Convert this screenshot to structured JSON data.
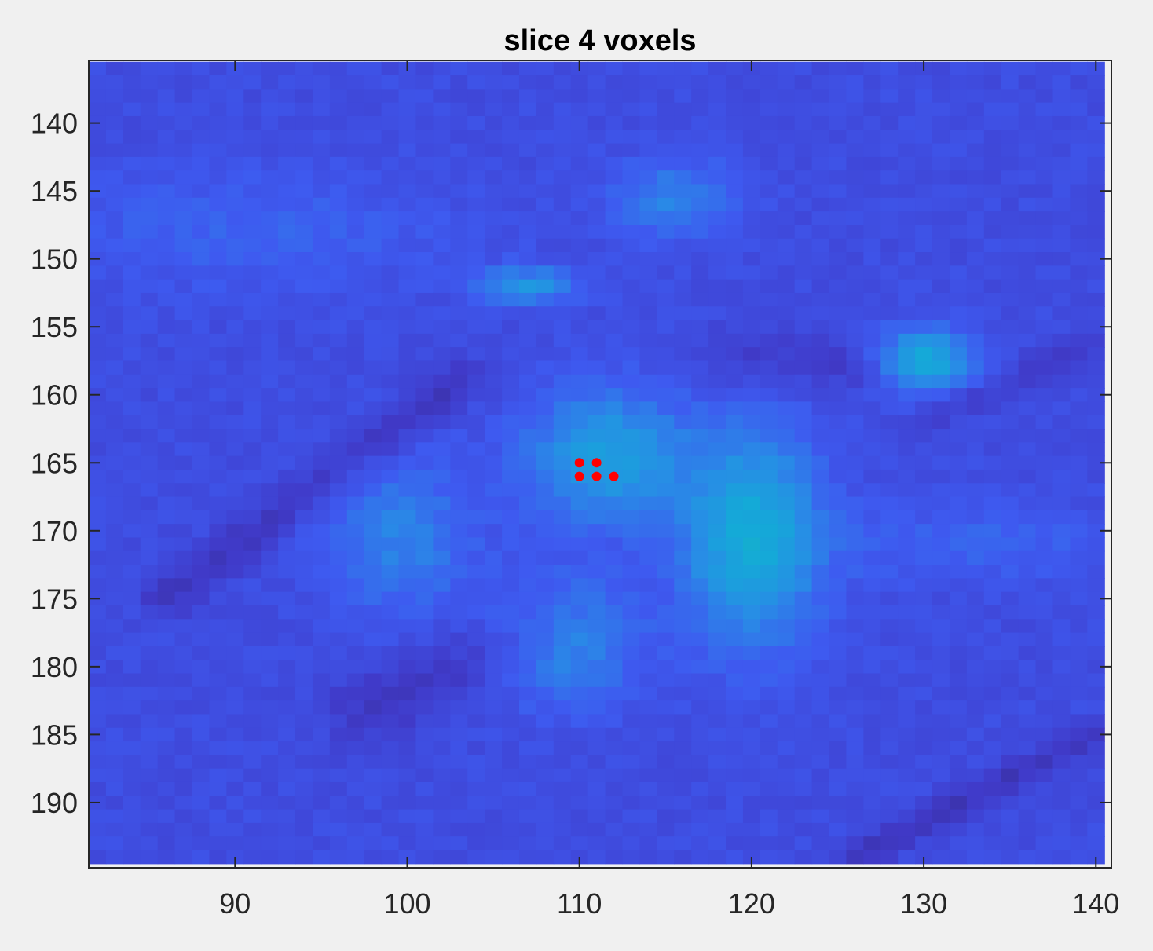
{
  "chart_data": {
    "type": "heatmap",
    "title": "slice 4 voxels",
    "xlabel": "",
    "ylabel": "",
    "xlim": [
      81.5,
      140.9
    ],
    "ylim": [
      135.4,
      194.8
    ],
    "y_reversed": true,
    "x_ticks": [
      90,
      100,
      110,
      120,
      130,
      140
    ],
    "y_ticks": [
      140,
      145,
      150,
      155,
      160,
      165,
      170,
      175,
      180,
      185,
      190
    ],
    "x_tick_labels": [
      "90",
      "100",
      "110",
      "120",
      "130",
      "140"
    ],
    "y_tick_labels": [
      "140",
      "145",
      "150",
      "155",
      "160",
      "165",
      "170",
      "175",
      "180",
      "185",
      "190"
    ],
    "grid": false,
    "colormap": "parula",
    "colors": {
      "background": "#f0f0f0",
      "axes": "#262626",
      "marker": "#ff0000"
    },
    "cells": {
      "x_range": [
        82,
        140
      ],
      "y_range": [
        136,
        194
      ],
      "base_value": 0.16,
      "bright_regions": [
        {
          "x": 115.5,
          "y": 145.5,
          "sx": 2.5,
          "sy": 2.0,
          "v": 0.12
        },
        {
          "x": 107.0,
          "y": 152.0,
          "sx": 2.0,
          "sy": 1.0,
          "v": 0.16
        },
        {
          "x": 130.0,
          "y": 157.5,
          "sx": 2.0,
          "sy": 1.6,
          "v": 0.24
        },
        {
          "x": 111.5,
          "y": 164.5,
          "sx": 3.2,
          "sy": 3.4,
          "v": 0.2
        },
        {
          "x": 120.0,
          "y": 170.5,
          "sx": 2.8,
          "sy": 5.5,
          "v": 0.24
        },
        {
          "x": 109.0,
          "y": 178.0,
          "sx": 3.0,
          "sy": 3.2,
          "v": 0.16
        },
        {
          "x": 99.5,
          "y": 170.5,
          "sx": 3.0,
          "sy": 4.0,
          "v": 0.12
        },
        {
          "x": 91.0,
          "y": 148.0,
          "sx": 8.0,
          "sy": 3.0,
          "v": 0.06
        },
        {
          "x": 133.0,
          "y": 171.0,
          "sx": 6.0,
          "sy": 2.0,
          "v": 0.06
        }
      ],
      "dark_bands": [
        {
          "x1": 86,
          "y1": 175,
          "x2": 103,
          "y2": 159,
          "w": 1.0,
          "v": -0.08
        },
        {
          "x1": 98,
          "y1": 183,
          "x2": 108,
          "y2": 177,
          "w": 2.0,
          "v": -0.07
        },
        {
          "x1": 126,
          "y1": 194,
          "x2": 140,
          "y2": 185,
          "w": 0.8,
          "v": -0.08
        },
        {
          "x1": 119,
          "y1": 157,
          "x2": 126,
          "y2": 158,
          "w": 1.5,
          "v": -0.06
        },
        {
          "x1": 130,
          "y1": 162,
          "x2": 140,
          "y2": 156,
          "w": 0.8,
          "v": -0.05
        }
      ]
    },
    "points": [
      {
        "x": 110,
        "y": 165
      },
      {
        "x": 111,
        "y": 165
      },
      {
        "x": 110,
        "y": 166
      },
      {
        "x": 111,
        "y": 166
      },
      {
        "x": 112,
        "y": 166
      }
    ]
  }
}
